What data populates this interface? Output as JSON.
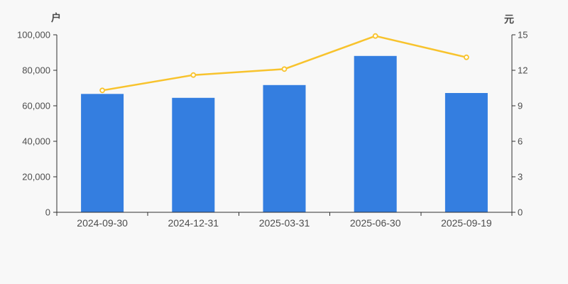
{
  "chart_data": {
    "type": "bar",
    "categories": [
      "2024-09-30",
      "2024-12-31",
      "2025-03-31",
      "2025-06-30",
      "2025-09-19"
    ],
    "series": [
      {
        "id": "bar-series",
        "type": "bar",
        "axis": "left",
        "color": "#347ee0",
        "values": [
          66700,
          64500,
          71700,
          88100,
          67200
        ]
      },
      {
        "id": "line-series",
        "type": "line",
        "axis": "right",
        "color": "#f8c32d",
        "marker_fill": "#ffffff",
        "values": [
          10.3,
          11.6,
          12.1,
          14.9,
          13.1
        ]
      }
    ],
    "left_axis": {
      "name": "户",
      "min": 0,
      "max": 100000,
      "tick_labels": [
        "0",
        "20,000",
        "40,000",
        "60,000",
        "80,000",
        "100,000"
      ]
    },
    "right_axis": {
      "name": "元",
      "min": 0,
      "max": 15,
      "tick_labels": [
        "0",
        "3",
        "6",
        "9",
        "12",
        "15"
      ]
    },
    "grid": false,
    "legend": false,
    "background": "#f8f8f8",
    "axis_color": "#2f2f2f",
    "label_color": "#4d4d4d"
  }
}
